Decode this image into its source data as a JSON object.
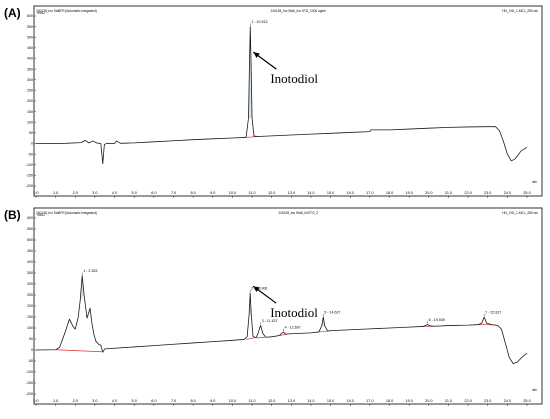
{
  "colors": {
    "trace": "#1a1a1a",
    "baseline": "#e03030",
    "peak_fill": "#7ab0d8",
    "frame": "#000000"
  },
  "chart_data": [
    {
      "type": "line",
      "panel_label": "(A)",
      "header_left": "240128_Ino Std6FR [Automatic Integrated]",
      "header_mid": "240128_Ino Std6_Ino STD_1000 ug/ml",
      "header_right": "HI1_VID_1-MCL_280 nm",
      "ylabel": "mAU",
      "xlabel": "min",
      "xlim": [
        0.0,
        25.0
      ],
      "ylim": [
        -200,
        600
      ],
      "x_ticks": [
        "0.0",
        "1.0",
        "2.0",
        "3.0",
        "4.0",
        "5.0",
        "6.0",
        "7.0",
        "8.0",
        "9.0",
        "10.0",
        "11.0",
        "12.0",
        "13.0",
        "14.0",
        "15.0",
        "16.0",
        "17.0",
        "18.0",
        "19.0",
        "20.0",
        "21.0",
        "22.0",
        "23.0",
        "24.0",
        "25.0"
      ],
      "y_ticks": [
        "-200",
        "-150",
        "-100",
        "-50",
        "0",
        "50",
        "100",
        "150",
        "200",
        "250",
        "300",
        "350",
        "400",
        "450",
        "500",
        "550",
        "600"
      ],
      "series": [
        {
          "points": [
            [
              0,
              0
            ],
            [
              1.5,
              1
            ],
            [
              2.3,
              4
            ],
            [
              2.5,
              14
            ],
            [
              2.7,
              3
            ],
            [
              2.9,
              12
            ],
            [
              3.1,
              2
            ],
            [
              3.3,
              0
            ],
            [
              3.4,
              -95
            ],
            [
              3.48,
              -5
            ],
            [
              3.6,
              1
            ],
            [
              4.0,
              0
            ],
            [
              4.1,
              12
            ],
            [
              4.3,
              1
            ],
            [
              5,
              3
            ],
            [
              6,
              8
            ],
            [
              7,
              13
            ],
            [
              8,
              18
            ],
            [
              9,
              22
            ],
            [
              10,
              26
            ],
            [
              10.5,
              28
            ],
            [
              10.7,
              30
            ],
            [
              10.82,
              120
            ],
            [
              10.87,
              380
            ],
            [
              10.91,
              550
            ],
            [
              10.95,
              380
            ],
            [
              11.0,
              120
            ],
            [
              11.1,
              35
            ],
            [
              11.3,
              33
            ],
            [
              12,
              36
            ],
            [
              13,
              40
            ],
            [
              14,
              44
            ],
            [
              15,
              48
            ],
            [
              16,
              52
            ],
            [
              17,
              56
            ],
            [
              17.05,
              64
            ],
            [
              18,
              64
            ],
            [
              19,
              68
            ],
            [
              20,
              72
            ],
            [
              21,
              76
            ],
            [
              22,
              78
            ],
            [
              23,
              79
            ],
            [
              23.4,
              79
            ],
            [
              23.6,
              60
            ],
            [
              23.8,
              10
            ],
            [
              24.0,
              -50
            ],
            [
              24.2,
              -82
            ],
            [
              24.4,
              -72
            ],
            [
              24.7,
              -35
            ],
            [
              25,
              -18
            ]
          ]
        }
      ],
      "peaks": [
        {
          "label": "1 - 10.913",
          "x": 10.913,
          "y": 550
        }
      ],
      "baselines": [
        [
          [
            10.6,
            28
          ],
          [
            11.3,
            33
          ]
        ]
      ],
      "annotation": {
        "text": "Inotodiol",
        "target_x": 10.913,
        "target_y": 430
      }
    },
    {
      "type": "line",
      "panel_label": "(B)",
      "header_left": "240128_Ino Std6FR [Automatic Integrated]",
      "header_mid": "240128_Ino Std6_INOTO_2",
      "header_right": "HI1_VID_1-MCL_280 nm",
      "ylabel": "mAU",
      "xlabel": "min",
      "xlim": [
        0.0,
        25.0
      ],
      "ylim": [
        -200,
        600
      ],
      "x_ticks": [
        "0.0",
        "1.0",
        "2.0",
        "3.0",
        "4.0",
        "5.0",
        "6.0",
        "7.0",
        "8.0",
        "9.0",
        "10.0",
        "11.0",
        "12.0",
        "13.0",
        "14.0",
        "15.0",
        "16.0",
        "17.0",
        "18.0",
        "19.0",
        "20.0",
        "21.0",
        "22.0",
        "23.0",
        "24.0",
        "25.0"
      ],
      "y_ticks": [
        "-200",
        "-150",
        "-100",
        "-50",
        "0",
        "50",
        "100",
        "150",
        "200",
        "250",
        "300",
        "350",
        "400",
        "450",
        "500",
        "550",
        "600"
      ],
      "series": [
        {
          "points": [
            [
              0,
              0
            ],
            [
              1.0,
              1
            ],
            [
              1.2,
              12
            ],
            [
              1.5,
              85
            ],
            [
              1.7,
              140
            ],
            [
              1.9,
              105
            ],
            [
              2.0,
              95
            ],
            [
              2.15,
              150
            ],
            [
              2.25,
              225
            ],
            [
              2.353,
              338
            ],
            [
              2.45,
              248
            ],
            [
              2.6,
              145
            ],
            [
              2.75,
              190
            ],
            [
              2.85,
              120
            ],
            [
              2.95,
              70
            ],
            [
              3.05,
              40
            ],
            [
              3.2,
              25
            ],
            [
              3.3,
              22
            ],
            [
              3.4,
              -10
            ],
            [
              3.5,
              5
            ],
            [
              4,
              8
            ],
            [
              5,
              14
            ],
            [
              6,
              20
            ],
            [
              7,
              26
            ],
            [
              8,
              32
            ],
            [
              9,
              38
            ],
            [
              10,
              44
            ],
            [
              10.6,
              48
            ],
            [
              10.75,
              60
            ],
            [
              10.85,
              160
            ],
            [
              10.906,
              260
            ],
            [
              10.96,
              160
            ],
            [
              11.05,
              62
            ],
            [
              11.2,
              55
            ],
            [
              11.3,
              75
            ],
            [
              11.437,
              112
            ],
            [
              11.55,
              75
            ],
            [
              11.7,
              58
            ],
            [
              12,
              60
            ],
            [
              12.4,
              66
            ],
            [
              12.5,
              76
            ],
            [
              12.607,
              82
            ],
            [
              12.7,
              72
            ],
            [
              13,
              74
            ],
            [
              14,
              78
            ],
            [
              14.4,
              82
            ],
            [
              14.55,
              110
            ],
            [
              14.627,
              150
            ],
            [
              14.7,
              110
            ],
            [
              14.85,
              86
            ],
            [
              15,
              88
            ],
            [
              16,
              92
            ],
            [
              17,
              96
            ],
            [
              18,
              100
            ],
            [
              19,
              104
            ],
            [
              19.7,
              107
            ],
            [
              19.85,
              112
            ],
            [
              19.939,
              116
            ],
            [
              20.05,
              110
            ],
            [
              20.3,
              108
            ],
            [
              21,
              111
            ],
            [
              22,
              113
            ],
            [
              22.5,
              115
            ],
            [
              22.7,
              122
            ],
            [
              22.817,
              150
            ],
            [
              22.95,
              122
            ],
            [
              23.2,
              115
            ],
            [
              23.5,
              112
            ],
            [
              23.7,
              95
            ],
            [
              23.9,
              30
            ],
            [
              24.1,
              -35
            ],
            [
              24.3,
              -62
            ],
            [
              24.5,
              -55
            ],
            [
              24.8,
              -28
            ],
            [
              25,
              -15
            ]
          ]
        }
      ],
      "peaks": [
        {
          "label": "1 - 2.353",
          "x": 2.353,
          "y": 338
        },
        {
          "label": "2 - 10.906",
          "x": 10.906,
          "y": 260
        },
        {
          "label": "3 - 11.437",
          "x": 11.437,
          "y": 112
        },
        {
          "label": "4 - 12.607",
          "x": 12.607,
          "y": 82
        },
        {
          "label": "5 - 14.627",
          "x": 14.627,
          "y": 150
        },
        {
          "label": "6 - 19.939",
          "x": 19.939,
          "y": 116
        },
        {
          "label": "7 - 22.817",
          "x": 22.817,
          "y": 150
        }
      ],
      "baselines": [
        [
          [
            1.0,
            1
          ],
          [
            3.35,
            -8
          ]
        ],
        [
          [
            10.7,
            48
          ],
          [
            11.1,
            55
          ]
        ],
        [
          [
            11.25,
            55
          ],
          [
            11.65,
            58
          ]
        ],
        [
          [
            12.4,
            66
          ],
          [
            12.8,
            72
          ]
        ],
        [
          [
            14.4,
            82
          ],
          [
            14.85,
            86
          ]
        ],
        [
          [
            19.6,
            107
          ],
          [
            20.3,
            108
          ]
        ],
        [
          [
            22.5,
            115
          ],
          [
            23.2,
            115
          ]
        ]
      ],
      "annotation": {
        "text": "Inotodiol",
        "target_x": 10.906,
        "target_y": 290
      }
    }
  ]
}
